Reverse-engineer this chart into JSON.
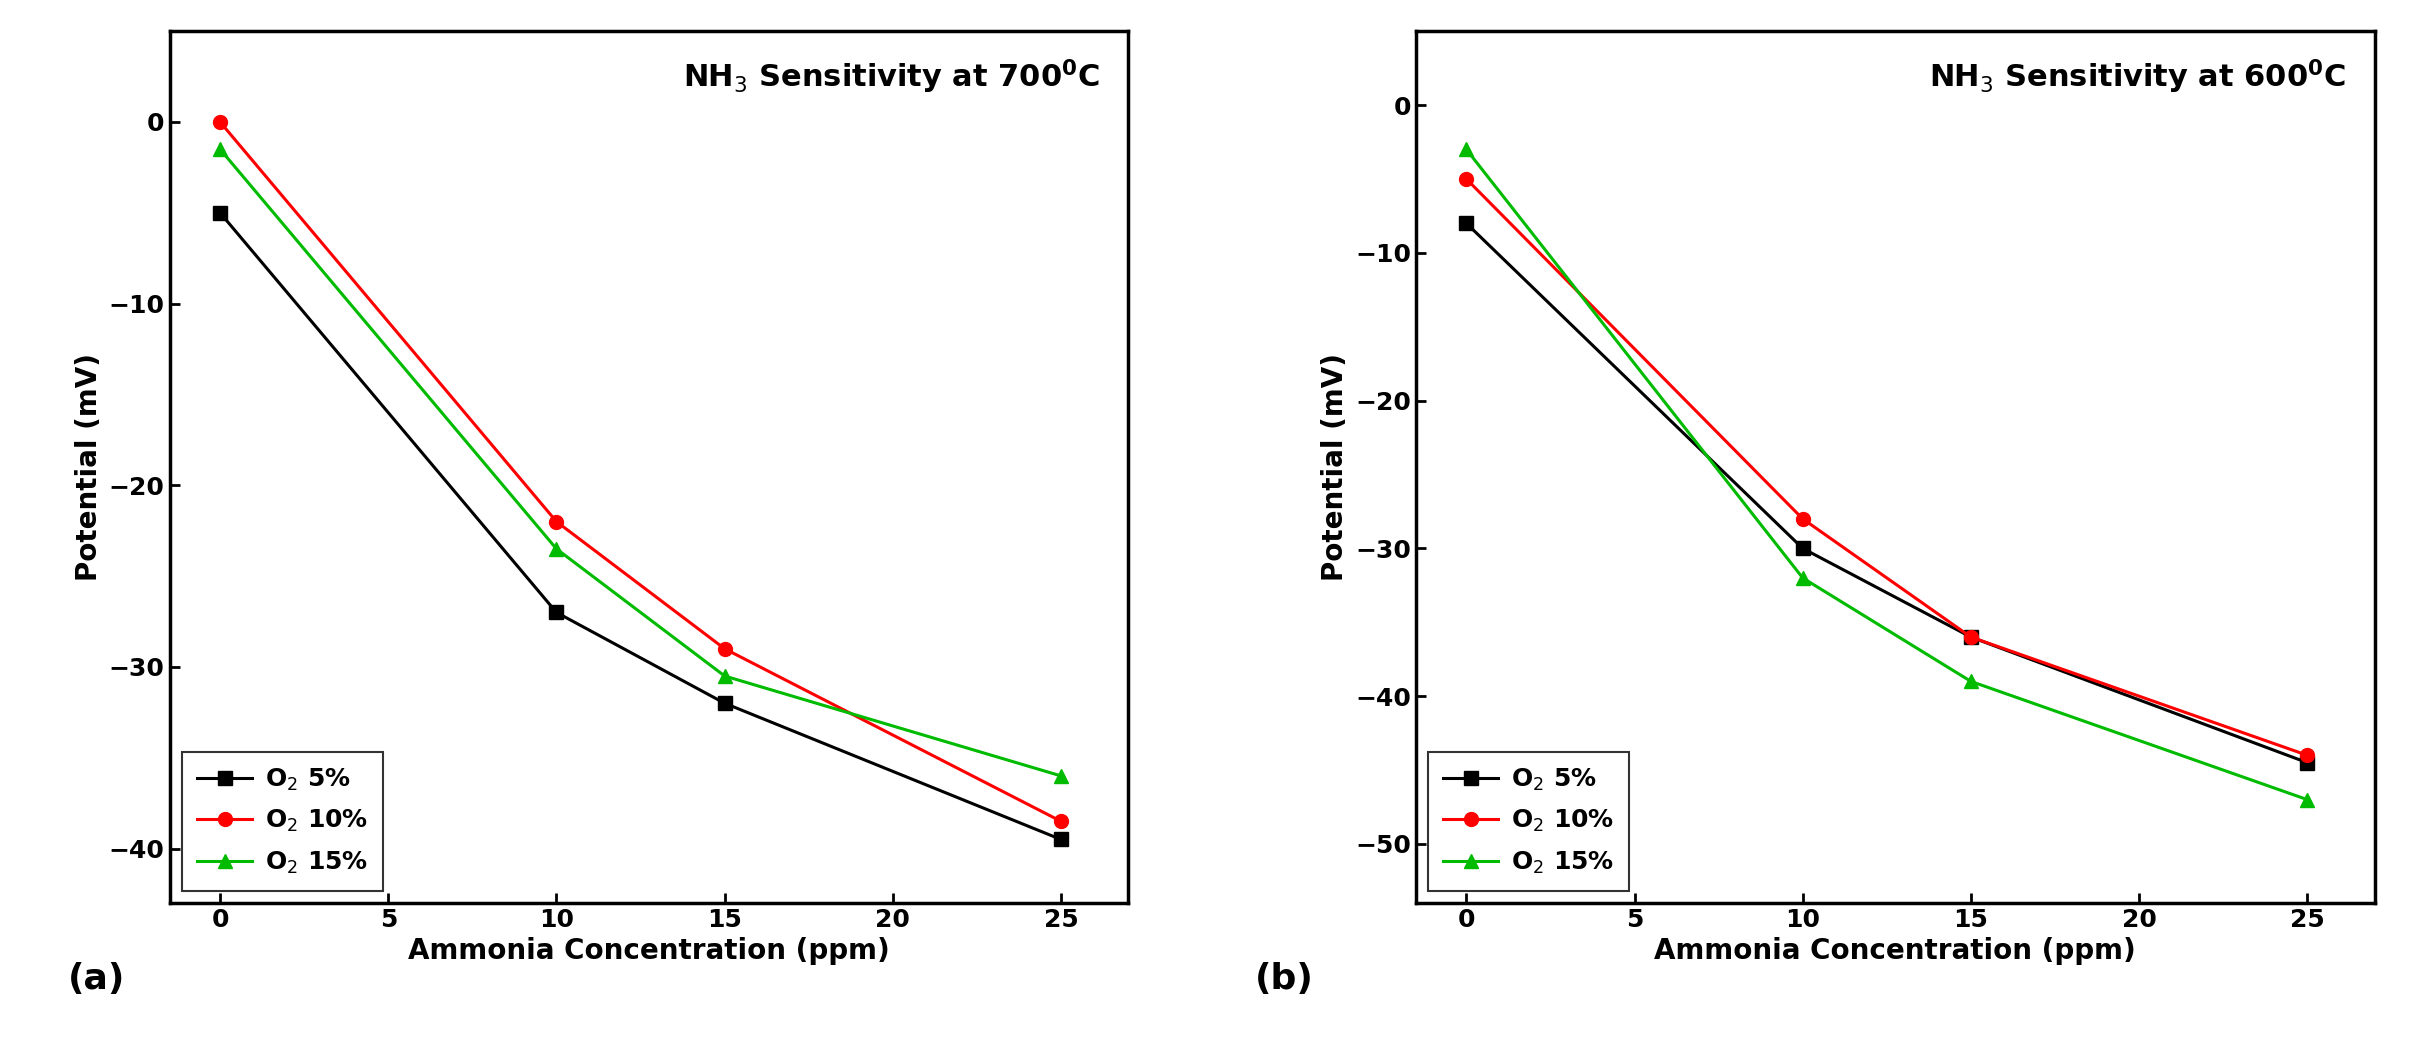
{
  "panel_a": {
    "title_parts": [
      "NH",
      "3",
      " Sensitivity at 700",
      "0",
      "C"
    ],
    "title_text": "NH$_3$ Sensitivity at 700$^\\mathregular{0}$C",
    "x": [
      0,
      10,
      15,
      25
    ],
    "o2_5": [
      -5,
      -27,
      -32,
      -39.5
    ],
    "o2_10": [
      0,
      -22,
      -29,
      -38.5
    ],
    "o2_15": [
      -1.5,
      -23.5,
      -30.5,
      -36
    ],
    "ylim": [
      -43,
      5
    ],
    "yticks": [
      0,
      -10,
      -20,
      -30,
      -40
    ],
    "xlim": [
      -1.5,
      27
    ],
    "xticks": [
      0,
      5,
      10,
      15,
      20,
      25
    ],
    "xlabel": "Ammonia Concentration (ppm)",
    "ylabel": "Potential (mV)",
    "label_a": "(a)"
  },
  "panel_b": {
    "title_text": "NH$_3$ Sensitivity at 600$^\\mathregular{0}$C",
    "x": [
      0,
      10,
      15,
      25
    ],
    "o2_5": [
      -8,
      -30,
      -36,
      -44.5
    ],
    "o2_10": [
      -5,
      -28,
      -36,
      -44
    ],
    "o2_15": [
      -3,
      -32,
      -39,
      -47
    ],
    "ylim": [
      -54,
      5
    ],
    "yticks": [
      0,
      -10,
      -20,
      -30,
      -40,
      -50
    ],
    "xlim": [
      -1.5,
      27
    ],
    "xticks": [
      0,
      5,
      10,
      15,
      20,
      25
    ],
    "xlabel": "Ammonia Concentration (ppm)",
    "ylabel": "Potential (mV)",
    "label_b": "(b)"
  },
  "colors": {
    "black": "#000000",
    "red": "#FF0000",
    "green": "#00BB00"
  },
  "legend_labels": [
    "O$_2$ 5%",
    "O$_2$ 10%",
    "O$_2$ 15%"
  ],
  "marker_size": 10,
  "line_width": 2.2,
  "font_size_title": 22,
  "font_size_label": 20,
  "font_size_tick": 18,
  "font_size_legend": 18,
  "font_size_panel_label": 26
}
